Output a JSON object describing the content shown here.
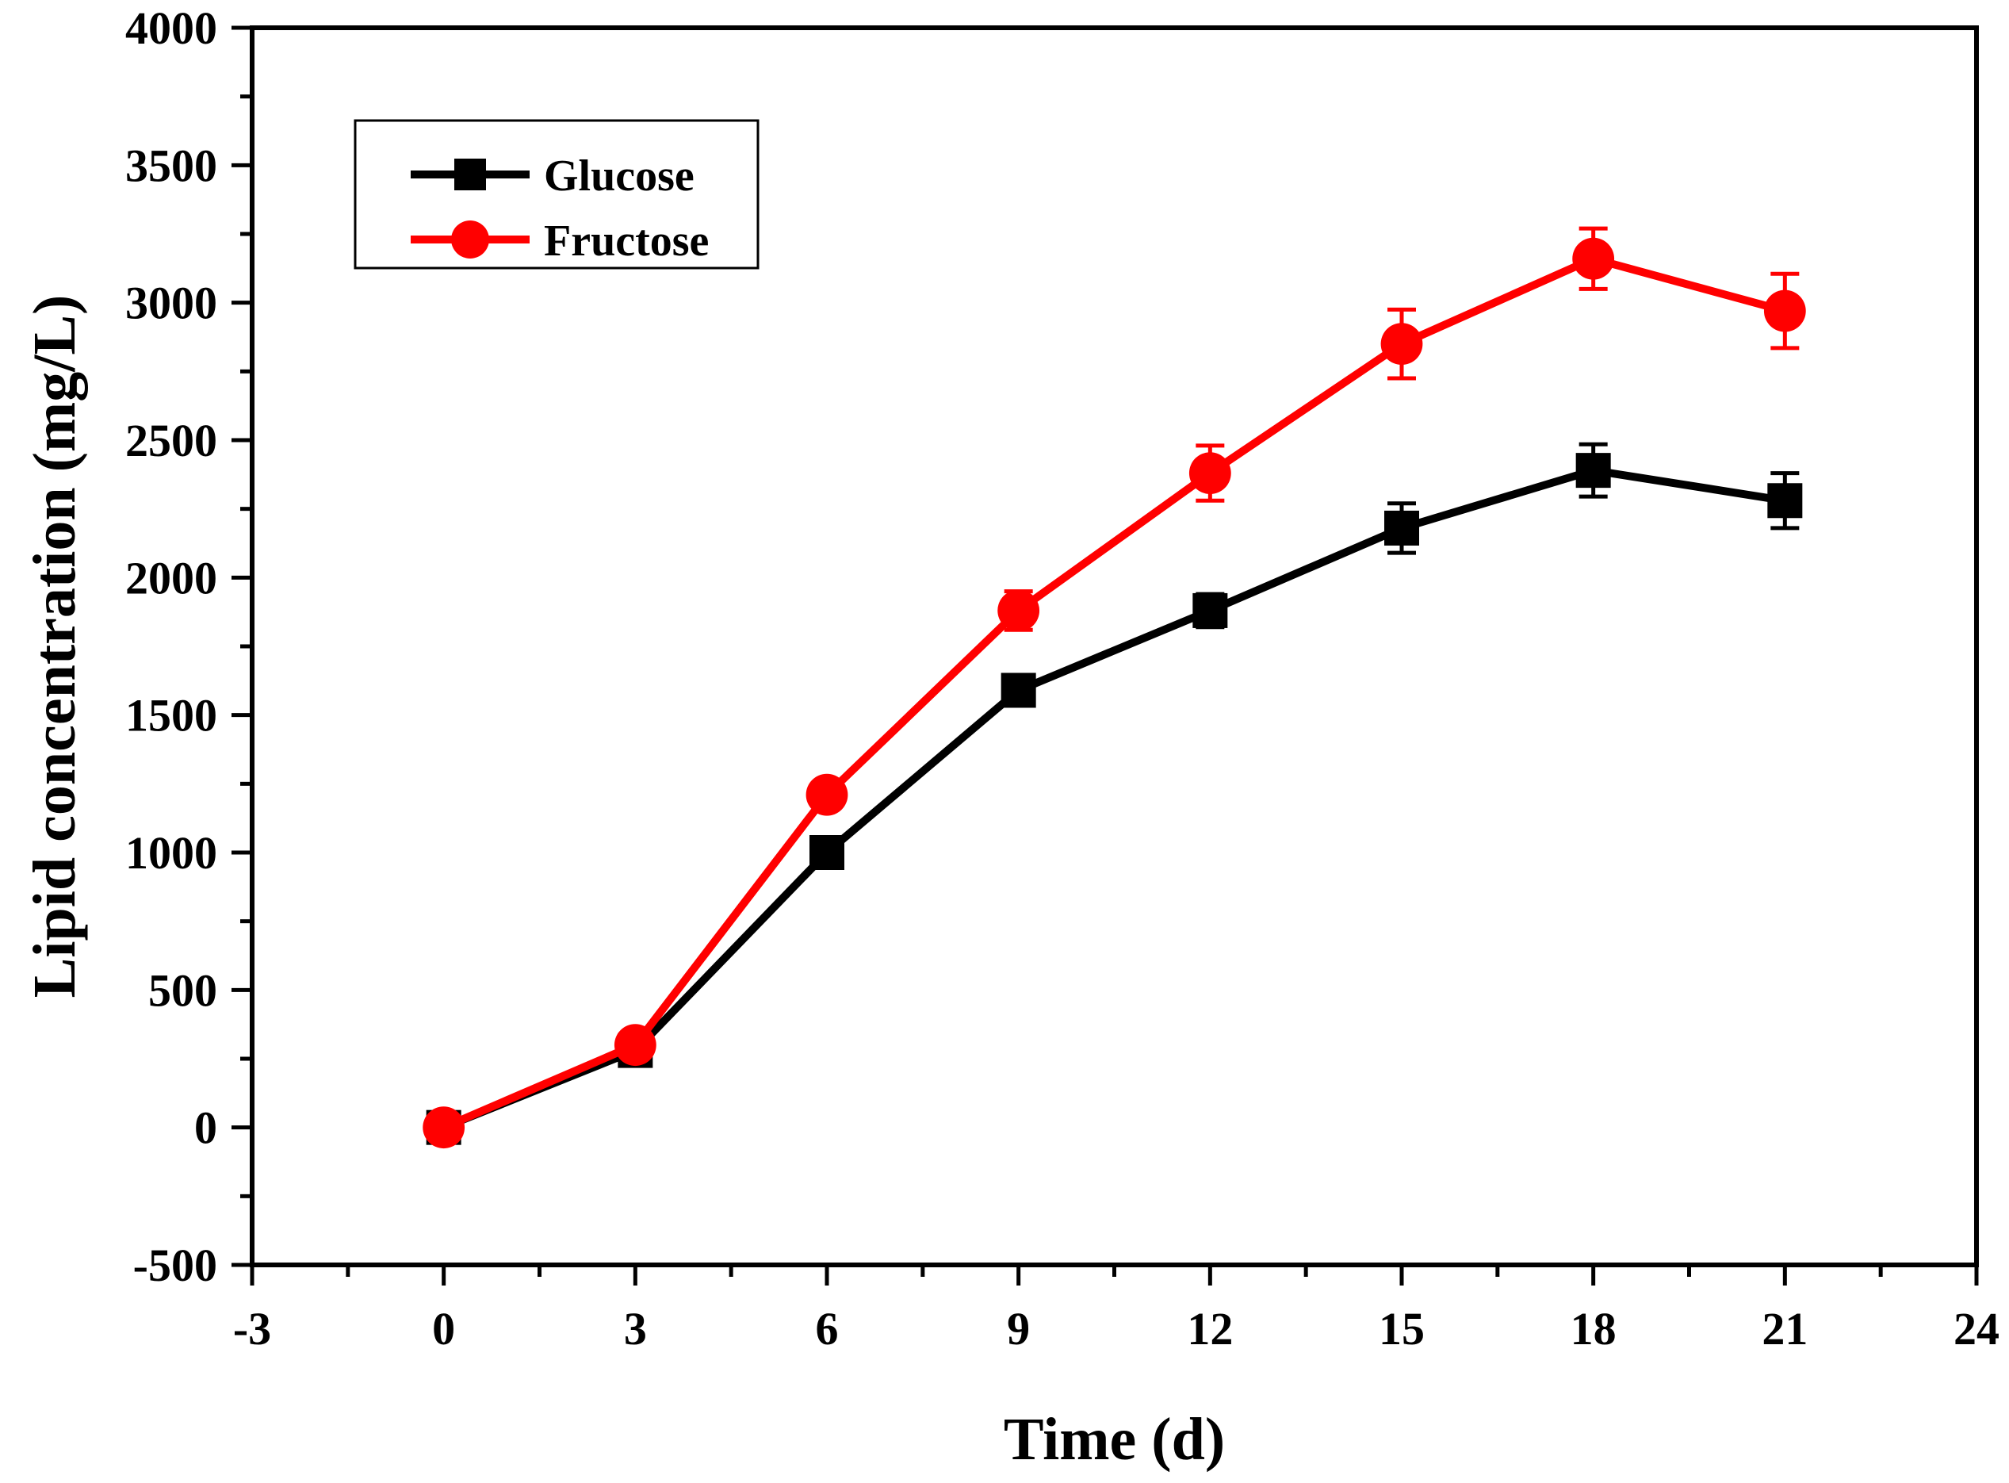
{
  "chart_data": {
    "type": "line",
    "title": "",
    "xlabel": "Time (d)",
    "ylabel": "Lipid concentration (mg/L)",
    "xlim": [
      -3,
      24
    ],
    "ylim": [
      -500,
      4000
    ],
    "xticks": [
      -3,
      0,
      3,
      6,
      9,
      12,
      15,
      18,
      21,
      24
    ],
    "yticks": [
      -500,
      0,
      500,
      1000,
      1500,
      2000,
      2500,
      3000,
      3500,
      4000
    ],
    "grid": false,
    "legend_position": "top-left",
    "x": [
      0,
      3,
      6,
      9,
      12,
      15,
      18,
      21
    ],
    "series": [
      {
        "name": "Glucose",
        "color": "#000000",
        "marker": "square",
        "values": [
          0,
          280,
          1000,
          1590,
          1880,
          2180,
          2390,
          2280
        ],
        "errors": [
          20,
          25,
          30,
          50,
          60,
          90,
          95,
          100
        ]
      },
      {
        "name": "Fructose",
        "color": "#ff0000",
        "marker": "circle",
        "values": [
          0,
          300,
          1210,
          1880,
          2380,
          2850,
          3160,
          2970
        ],
        "errors": [
          20,
          25,
          30,
          70,
          100,
          125,
          110,
          135
        ]
      }
    ]
  }
}
